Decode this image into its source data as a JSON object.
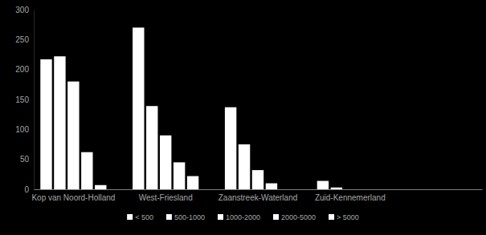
{
  "chart_data": {
    "type": "bar",
    "categories": [
      "Kop van Noord-Holland",
      "West-Friesland",
      "Zaanstreek-Waterland",
      "Zuid-Kennemerland",
      null
    ],
    "series": [
      {
        "name": "< 500",
        "color": "#ffffff",
        "values": [
          217,
          270,
          137,
          14,
          null
        ]
      },
      {
        "name": "500-1000",
        "color": "#ffffff",
        "values": [
          222,
          139,
          75,
          3,
          null
        ]
      },
      {
        "name": "1000-2000",
        "color": "#ffffff",
        "values": [
          180,
          90,
          32,
          0,
          null
        ]
      },
      {
        "name": "2000-5000",
        "color": "#ffffff",
        "values": [
          62,
          45,
          10,
          0,
          null
        ]
      },
      {
        "name": "> 5000",
        "color": "#ffffff",
        "values": [
          7,
          22,
          0,
          0,
          null
        ]
      }
    ],
    "ylim": [
      0,
      300
    ],
    "yticks": [
      0,
      50,
      100,
      150,
      200,
      250,
      300
    ],
    "grid": false,
    "legend": "bottom"
  }
}
